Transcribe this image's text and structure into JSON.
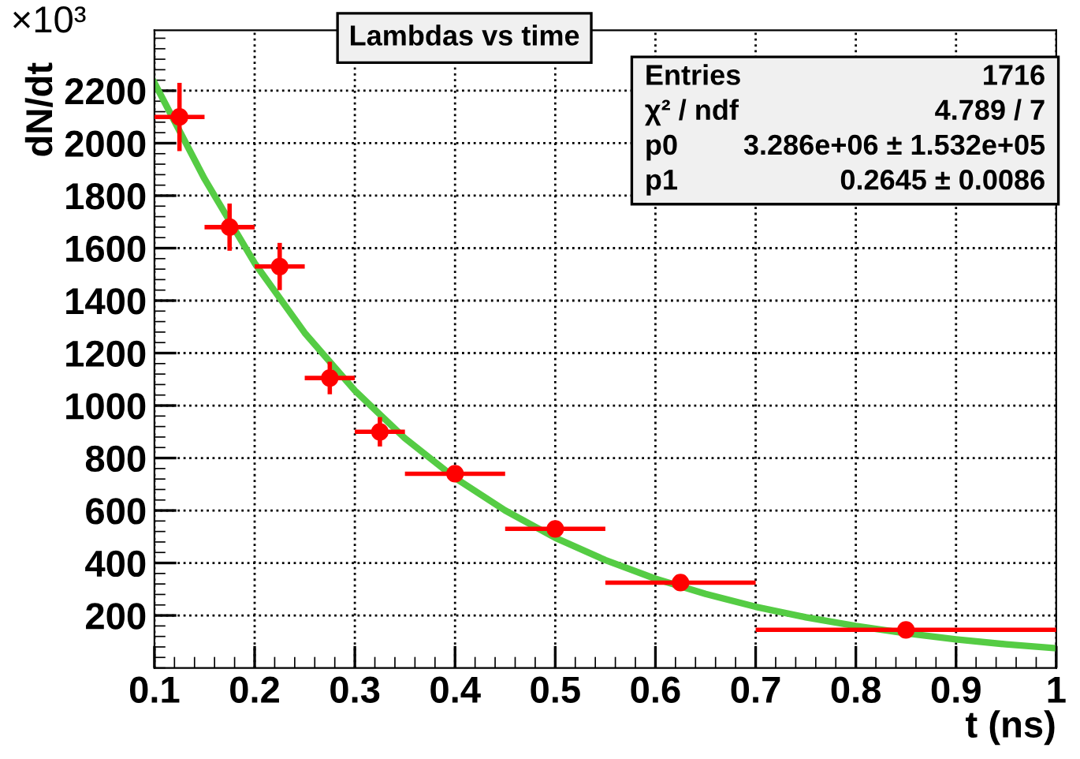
{
  "chart_data": {
    "type": "scatter",
    "title": "Lambdas vs time",
    "xlabel": "t (ns)",
    "ylabel": "dN/dt",
    "annotations": [
      "×10³",
      "Entries",
      "1716",
      "χ² / ndf",
      "4.789 / 7",
      "p0",
      "3.286e+06 ± 1.532e+05",
      "p1",
      "0.2645 ± 0.0086"
    ],
    "xlim": [
      0.1,
      1.0
    ],
    "xticks": [
      0.1,
      0.2,
      0.3,
      0.4,
      0.5,
      0.6,
      0.7,
      0.8,
      0.9,
      {
        "value": 1.0,
        "label": "1"
      }
    ],
    "ylim": [
      0,
      2430
    ],
    "yticks": [
      200,
      400,
      600,
      800,
      1000,
      1200,
      1400,
      1600,
      1800,
      2000,
      2200
    ],
    "grid": true,
    "legend": false,
    "series": [
      {
        "color": "#ff0000",
        "marker": "circle",
        "x": [
          0.125,
          0.175,
          0.225,
          0.275,
          0.325,
          0.4,
          0.5,
          0.625,
          0.85
        ],
        "values": [
          2100,
          1680,
          1530,
          1105,
          900,
          740,
          530,
          325,
          145
        ],
        "errors": [
          130,
          90,
          90,
          62,
          56,
          30,
          20,
          18,
          15
        ],
        "xerrors": [
          0.025,
          0.025,
          0.025,
          0.025,
          0.025,
          0.05,
          0.05,
          0.075,
          0.15
        ]
      },
      {
        "type": "line",
        "color": "#55cc44",
        "x": [
          0.1,
          0.15,
          0.2,
          0.25,
          0.3,
          0.35,
          0.4,
          0.45,
          0.5,
          0.55,
          0.6,
          0.65,
          0.7,
          0.75,
          0.8,
          0.85,
          0.9,
          0.95,
          1.0
        ],
        "values": [
          2230,
          1864,
          1543,
          1277,
          1057,
          875,
          724,
          600,
          496,
          411,
          340,
          282,
          233,
          193,
          160,
          132,
          109,
          90,
          75
        ]
      }
    ]
  }
}
